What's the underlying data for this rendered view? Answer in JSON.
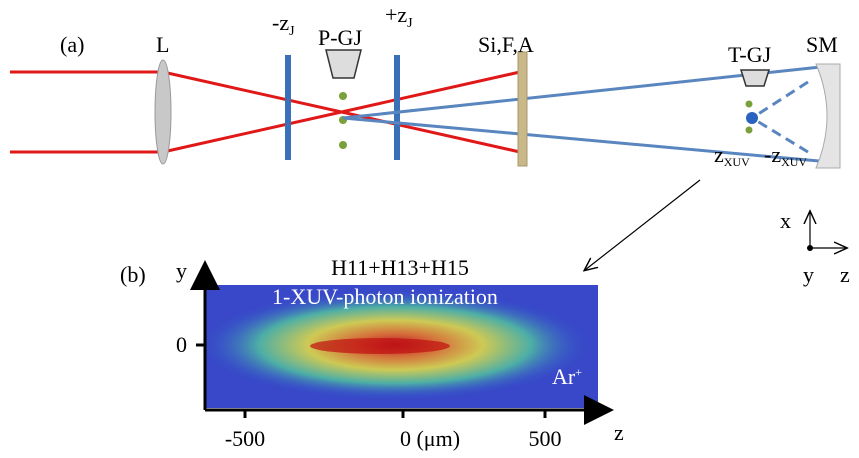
{
  "panel_a": {
    "label": "(a)",
    "lens": "L",
    "minus_zj": {
      "main": "-z",
      "sub": "J"
    },
    "pgj": "P-GJ",
    "plus_zj": {
      "main": "+z",
      "sub": "J"
    },
    "filter": "Si,F,A",
    "tgj": "T-GJ",
    "mirror": "SM",
    "zxuv": {
      "main": "z",
      "sub": "XUV"
    },
    "minus_zxuv": {
      "main": "-z",
      "sub": "XUV"
    },
    "axes": {
      "x": "x",
      "y": "y",
      "z": "z"
    }
  },
  "panel_b": {
    "label": "(b)",
    "y_axis": "y",
    "harmonics": "H11+H13+H15",
    "process": "1-XUV-photon ionization",
    "ion": {
      "main": "Ar",
      "sup": "+"
    },
    "y_tick": "0",
    "x_ticks": [
      "-500",
      "0 (μm)",
      "500"
    ],
    "x_axis": "z"
  }
}
